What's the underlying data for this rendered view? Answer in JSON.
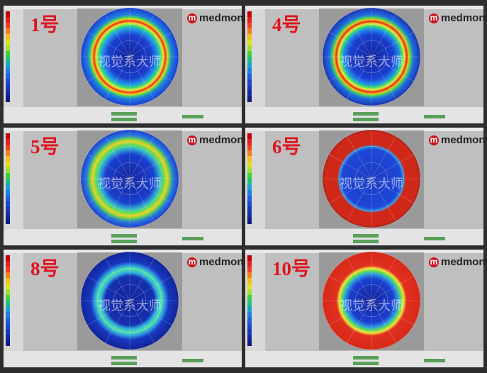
{
  "panels": [
    {
      "label": "1号",
      "logo_mark": "m",
      "logo": "medmont",
      "watermark": "视觉系大师"
    },
    {
      "label": "4号",
      "logo_mark": "m",
      "logo": "medmont",
      "watermark": "视觉系大师"
    },
    {
      "label": "5号",
      "logo_mark": "m",
      "logo": "medmont",
      "watermark": "视觉系大师"
    },
    {
      "label": "6号",
      "logo_mark": "m",
      "logo": "medmont",
      "watermark": "视觉系大师"
    },
    {
      "label": "8号",
      "logo_mark": "m",
      "logo": "medmont",
      "watermark": "视觉系大师"
    },
    {
      "label": "10号",
      "logo_mark": "m",
      "logo": "medmont",
      "watermark": "视觉系大师"
    }
  ]
}
